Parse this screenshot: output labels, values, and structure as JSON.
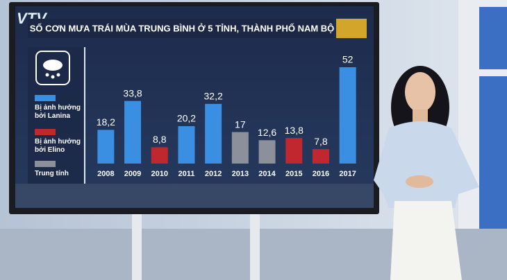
{
  "logo": "VTV",
  "chart_data": {
    "type": "bar",
    "title": "SỐ CƠN MƯA TRÁI MÙA TRUNG BÌNH  Ở 5 TỈNH, THÀNH PHỐ NAM BỘ",
    "categories": [
      "2008",
      "2009",
      "2010",
      "2011",
      "2012",
      "2013",
      "2014",
      "2015",
      "2016",
      "2017"
    ],
    "values": [
      18.2,
      33.8,
      8.8,
      20.2,
      32.2,
      17,
      12.6,
      13.8,
      7.8,
      52
    ],
    "value_labels": [
      "18,2",
      "33,8",
      "8,8",
      "20,2",
      "32,2",
      "17",
      "12,6",
      "13,8",
      "7,8",
      "52"
    ],
    "colors": [
      "#3b8fe2",
      "#3b8fe2",
      "#c0272e",
      "#3b8fe2",
      "#3b8fe2",
      "#8b909b",
      "#8b909b",
      "#c0272e",
      "#c0272e",
      "#3b8fe2"
    ],
    "legend": [
      {
        "name": "Bị ảnh hưởng bởi Lanina",
        "color": "#3b8fe2"
      },
      {
        "name": "Bị ảnh hưởng bởi Elino",
        "color": "#c0272e"
      },
      {
        "name": "Trung tính",
        "color": "#8b909b"
      }
    ]
  }
}
